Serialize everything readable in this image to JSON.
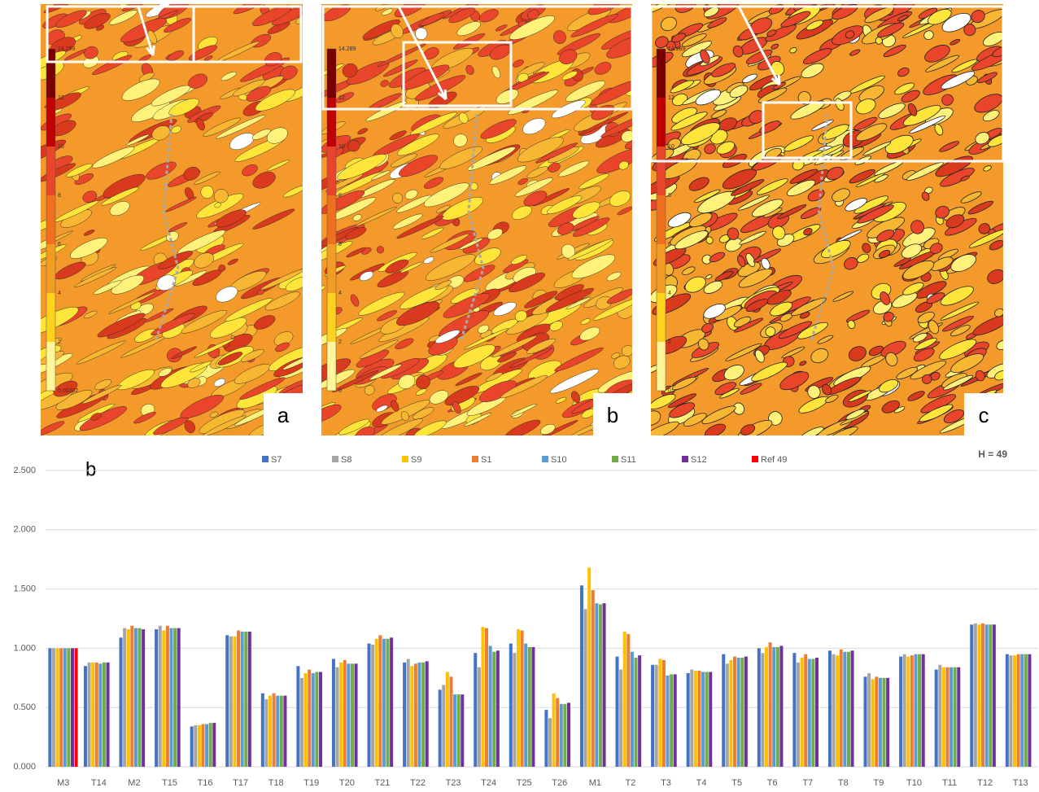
{
  "maps": [
    {
      "label": "a",
      "colorbar_labels": [
        "14.289",
        "12",
        "10",
        "8",
        "6",
        "4",
        "2",
        "0.00302"
      ]
    },
    {
      "label": "b",
      "colorbar_labels": [
        "14.289",
        "12",
        "10",
        "8",
        "6",
        "4",
        "2",
        "0"
      ]
    },
    {
      "label": "c",
      "colorbar_labels": [
        "14.289",
        "12",
        "10",
        "8",
        "6",
        "4",
        "2",
        "0"
      ]
    }
  ],
  "chart_data": {
    "type": "bar",
    "panel_label": "b",
    "annotation": "H = 49",
    "categories": [
      "M3",
      "T14",
      "M2",
      "T15",
      "T16",
      "T17",
      "T18",
      "T19",
      "T20",
      "T21",
      "T22",
      "T23",
      "T24",
      "T25",
      "T26",
      "M1",
      "T2",
      "T3",
      "T4",
      "T5",
      "T6",
      "T7",
      "T8",
      "T9",
      "T10",
      "T11",
      "T12",
      "T13"
    ],
    "series": [
      {
        "name": "S7",
        "color": "#4472c4",
        "values": [
          1.0,
          0.85,
          1.09,
          1.16,
          0.34,
          1.11,
          0.62,
          0.85,
          0.91,
          1.04,
          0.88,
          0.65,
          0.96,
          1.04,
          0.48,
          1.53,
          0.93,
          0.86,
          0.79,
          0.95,
          1.0,
          0.96,
          0.98,
          0.76,
          0.93,
          0.82,
          1.2,
          0.95
        ]
      },
      {
        "name": "S8",
        "color": "#a5a5a5",
        "values": [
          1.0,
          0.88,
          1.17,
          1.19,
          0.35,
          1.1,
          0.57,
          0.75,
          0.84,
          1.03,
          0.91,
          0.69,
          0.84,
          0.96,
          0.41,
          1.33,
          0.82,
          0.86,
          0.82,
          0.87,
          0.96,
          0.88,
          0.95,
          0.79,
          0.95,
          0.86,
          1.21,
          0.94
        ]
      },
      {
        "name": "S9",
        "color": "#ffc000",
        "values": [
          1.0,
          0.88,
          1.16,
          1.15,
          0.35,
          1.1,
          0.6,
          0.79,
          0.88,
          1.08,
          0.85,
          0.8,
          1.18,
          1.16,
          0.62,
          1.68,
          1.14,
          0.91,
          0.81,
          0.9,
          1.01,
          0.92,
          0.94,
          0.74,
          0.93,
          0.84,
          1.2,
          0.94
        ]
      },
      {
        "name": "S1",
        "color": "#ed7d31",
        "values": [
          1.0,
          0.88,
          1.19,
          1.19,
          0.36,
          1.15,
          0.62,
          0.82,
          0.9,
          1.11,
          0.87,
          0.76,
          1.17,
          1.15,
          0.58,
          1.49,
          1.12,
          0.9,
          0.81,
          0.93,
          1.05,
          0.95,
          0.99,
          0.76,
          0.94,
          0.84,
          1.21,
          0.95
        ]
      },
      {
        "name": "S10",
        "color": "#5b9bd5",
        "values": [
          1.0,
          0.87,
          1.17,
          1.17,
          0.36,
          1.14,
          0.6,
          0.79,
          0.87,
          1.08,
          0.88,
          0.61,
          1.02,
          1.04,
          0.53,
          1.38,
          0.97,
          0.77,
          0.8,
          0.92,
          1.01,
          0.91,
          0.97,
          0.75,
          0.95,
          0.84,
          1.2,
          0.95
        ]
      },
      {
        "name": "S11",
        "color": "#70ad47",
        "values": [
          1.0,
          0.88,
          1.17,
          1.17,
          0.37,
          1.14,
          0.6,
          0.8,
          0.87,
          1.08,
          0.88,
          0.61,
          0.97,
          1.01,
          0.53,
          1.37,
          0.92,
          0.78,
          0.8,
          0.92,
          1.01,
          0.91,
          0.97,
          0.75,
          0.95,
          0.84,
          1.2,
          0.95
        ]
      },
      {
        "name": "S12",
        "color": "#7030a0",
        "values": [
          1.0,
          0.88,
          1.16,
          1.17,
          0.37,
          1.14,
          0.6,
          0.8,
          0.87,
          1.09,
          0.89,
          0.61,
          0.98,
          1.01,
          0.54,
          1.38,
          0.94,
          0.78,
          0.8,
          0.93,
          1.02,
          0.92,
          0.98,
          0.75,
          0.95,
          0.84,
          1.2,
          0.95
        ]
      },
      {
        "name": "Ref 49",
        "color": "#ff0000",
        "values": [
          1.0,
          null,
          null,
          null,
          null,
          null,
          null,
          null,
          null,
          null,
          null,
          null,
          null,
          null,
          null,
          null,
          null,
          null,
          null,
          null,
          null,
          null,
          null,
          null,
          null,
          null,
          null,
          null
        ]
      }
    ],
    "ylim": [
      0,
      2.5
    ],
    "yticks": [
      {
        "value": 0,
        "label": "0.000"
      },
      {
        "value": 0.5,
        "label": "0.500"
      },
      {
        "value": 1,
        "label": "1.000"
      },
      {
        "value": 1.5,
        "label": "1.500"
      },
      {
        "value": 2,
        "label": "2.000"
      },
      {
        "value": 2.5,
        "label": "2.500"
      }
    ],
    "grid": true,
    "legend": "top"
  }
}
